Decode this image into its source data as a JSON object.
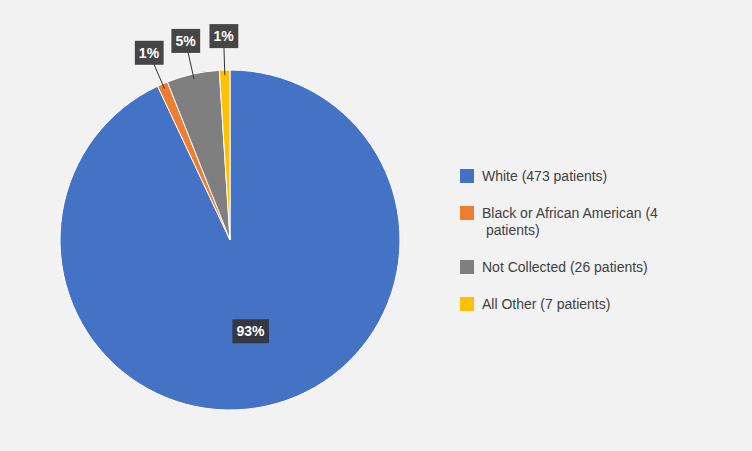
{
  "chart_data": {
    "type": "pie",
    "categories": [
      "White (473 patients)",
      "Black or African American (4\n patients)",
      "Not Collected (26 patients)",
      "All Other (7 patients)"
    ],
    "values": [
      93,
      1,
      5,
      1
    ],
    "value_labels": [
      "93%",
      "1%",
      "5%",
      "1%"
    ],
    "colors": [
      "#4472C4",
      "#ED7D31",
      "#7F7F7F",
      "#FFC000"
    ],
    "data_labels": true,
    "legend": "right"
  }
}
